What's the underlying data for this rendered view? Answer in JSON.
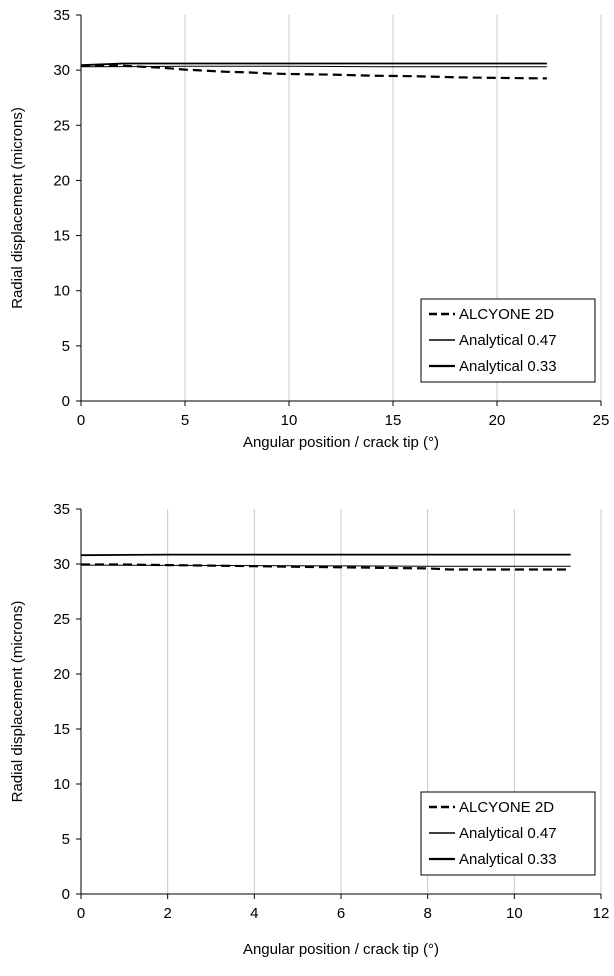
{
  "chart_data": [
    {
      "type": "line",
      "title": "",
      "xlabel": "Angular position / crack tip (°)",
      "ylabel": "Radial displacement (microns)",
      "xlim": [
        0,
        25
      ],
      "ylim": [
        0,
        35
      ],
      "xticks": [
        "0",
        "5",
        "10",
        "15",
        "20",
        "25"
      ],
      "yticks": [
        "0",
        "5",
        "10",
        "15",
        "20",
        "25",
        "30",
        "35"
      ],
      "grid": "vertical",
      "legend_position": "bottom-right",
      "series": [
        {
          "name": "ALCYONE 2D",
          "style": "dashed-thick",
          "x": [
            0,
            1,
            2,
            3,
            4,
            5,
            6,
            7,
            8,
            9,
            10,
            12,
            14,
            16,
            18,
            20,
            22.4
          ],
          "y": [
            30.4,
            30.45,
            30.4,
            30.3,
            30.2,
            30.05,
            29.95,
            29.85,
            29.8,
            29.7,
            29.65,
            29.6,
            29.5,
            29.45,
            29.35,
            29.3,
            29.25
          ]
        },
        {
          "name": "Analytical 0.47",
          "style": "solid-thin",
          "x": [
            0,
            5,
            10,
            15,
            20,
            22.4
          ],
          "y": [
            30.3,
            30.35,
            30.35,
            30.3,
            30.3,
            30.3
          ]
        },
        {
          "name": "Analytical 0.33",
          "style": "solid-thick",
          "x": [
            0,
            2,
            5,
            10,
            15,
            20,
            22.4
          ],
          "y": [
            30.45,
            30.6,
            30.6,
            30.6,
            30.6,
            30.6,
            30.6
          ]
        }
      ]
    },
    {
      "type": "line",
      "title": "",
      "xlabel": "Angular position / crack tip (°)",
      "ylabel": "Radial displacement (microns)",
      "xlim": [
        0,
        12
      ],
      "ylim": [
        0,
        35
      ],
      "xticks": [
        "0",
        "2",
        "4",
        "6",
        "8",
        "10",
        "12"
      ],
      "yticks": [
        "0",
        "5",
        "10",
        "15",
        "20",
        "25",
        "30",
        "35"
      ],
      "grid": "vertical",
      "legend_position": "bottom-right",
      "series": [
        {
          "name": "ALCYONE 2D",
          "style": "dashed-thick",
          "x": [
            0,
            1,
            2,
            3,
            4,
            5,
            6,
            7,
            8,
            8.5,
            9,
            10,
            11.3
          ],
          "y": [
            29.95,
            29.95,
            29.9,
            29.85,
            29.8,
            29.75,
            29.7,
            29.65,
            29.6,
            29.5,
            29.5,
            29.5,
            29.5
          ]
        },
        {
          "name": "Analytical 0.47",
          "style": "solid-thin",
          "x": [
            0,
            4,
            8,
            11.3
          ],
          "y": [
            29.9,
            29.85,
            29.8,
            29.8
          ]
        },
        {
          "name": "Analytical 0.33",
          "style": "solid-thick",
          "x": [
            0,
            2,
            4,
            6,
            8,
            10,
            11.3
          ],
          "y": [
            30.8,
            30.85,
            30.85,
            30.85,
            30.85,
            30.85,
            30.85
          ]
        }
      ]
    }
  ]
}
